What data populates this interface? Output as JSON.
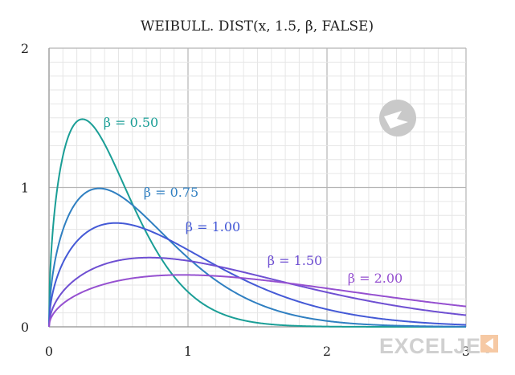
{
  "chart_data": {
    "type": "line",
    "title": "WEIBULL. DIST(x, 1.5, β, FALSE)",
    "alpha": 1.5,
    "xlim": [
      0,
      3
    ],
    "ylim": [
      0,
      2
    ],
    "x_ticks": [
      "0",
      "1",
      "2",
      "3"
    ],
    "y_ticks": [
      "0",
      "1",
      "2"
    ],
    "grid": true,
    "series": [
      {
        "name": "β = 0.50",
        "beta": 0.5,
        "color": "#1a9e96",
        "x": [
          0,
          0.05,
          0.1,
          0.15,
          0.2,
          0.25,
          0.3,
          0.35,
          0.4,
          0.5,
          0.6,
          0.7,
          0.8,
          0.9,
          1.0,
          1.2,
          1.4,
          1.6,
          1.8,
          2.0
        ],
        "y": [
          0,
          0.89,
          1.21,
          1.41,
          1.48,
          1.47,
          1.42,
          1.32,
          1.2,
          0.92,
          0.65,
          0.43,
          0.26,
          0.15,
          0.08,
          0.02,
          0.004,
          0.0,
          0.0,
          0.0
        ]
      },
      {
        "name": "β = 0.75",
        "beta": 0.75,
        "color": "#2f7fc1",
        "x": [
          0,
          0.1,
          0.2,
          0.3,
          0.36,
          0.45,
          0.6,
          0.8,
          1.0,
          1.2,
          1.5,
          1.8,
          2.1,
          2.4,
          2.7,
          3.0
        ],
        "y": [
          0,
          0.72,
          0.93,
          0.99,
          1.0,
          0.98,
          0.9,
          0.74,
          0.56,
          0.39,
          0.21,
          0.1,
          0.04,
          0.02,
          0.006,
          0.002
        ]
      },
      {
        "name": "β = 1.00",
        "beta": 1.0,
        "color": "#4459d6",
        "x": [
          0,
          0.1,
          0.2,
          0.3,
          0.48,
          0.6,
          0.8,
          1.0,
          1.3,
          1.6,
          1.9,
          2.2,
          2.5,
          3.0
        ],
        "y": [
          0,
          0.45,
          0.61,
          0.7,
          0.75,
          0.73,
          0.66,
          0.55,
          0.39,
          0.26,
          0.15,
          0.09,
          0.05,
          0.01
        ]
      },
      {
        "name": "β = 1.50",
        "beta": 1.5,
        "color": "#6e4fd2",
        "x": [
          0,
          0.1,
          0.3,
          0.5,
          0.72,
          0.9,
          1.2,
          1.5,
          1.8,
          2.1,
          2.4,
          2.7,
          3.0
        ],
        "y": [
          0,
          0.25,
          0.41,
          0.47,
          0.5,
          0.48,
          0.43,
          0.37,
          0.29,
          0.21,
          0.15,
          0.1,
          0.06
        ]
      },
      {
        "name": "β = 2.00",
        "beta": 2.0,
        "color": "#9550d0",
        "x": [
          0,
          0.1,
          0.3,
          0.5,
          0.7,
          0.96,
          1.2,
          1.5,
          1.8,
          2.1,
          2.4,
          2.7,
          3.0
        ],
        "y": [
          0,
          0.17,
          0.28,
          0.33,
          0.36,
          0.37,
          0.36,
          0.34,
          0.3,
          0.26,
          0.22,
          0.18,
          0.14
        ]
      }
    ]
  },
  "watermark": {
    "text": "EXCELJET"
  }
}
